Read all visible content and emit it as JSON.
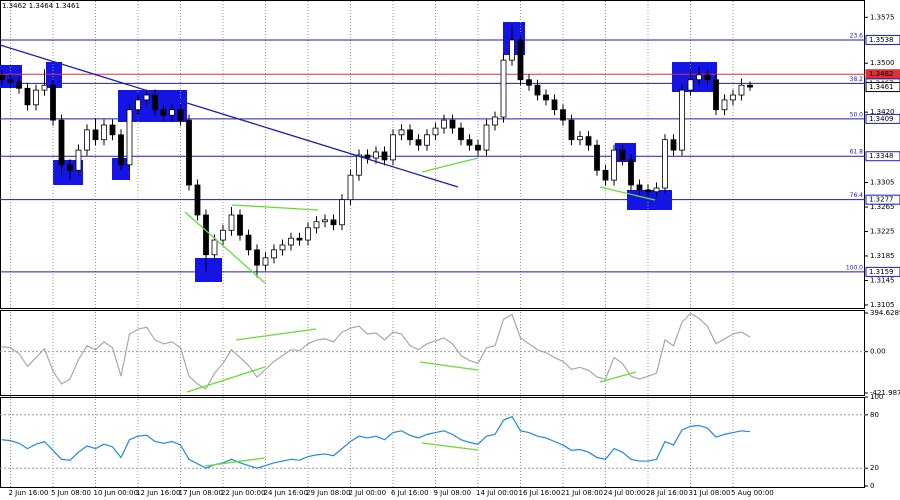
{
  "chart_data": [
    {
      "type": "candlestick",
      "title": "1.3462 1.3464 1.3461",
      "categories": [
        null,
        "2 Jun 16:00",
        null,
        null,
        null,
        null,
        "5 Jun 08:00",
        null,
        null,
        null,
        null,
        "10 Jun 00:00",
        null,
        null,
        null,
        null,
        "12 Jun 16:00",
        null,
        null,
        null,
        null,
        "17 Jun 08:00",
        null,
        null,
        null,
        null,
        "22 Jun 00:00",
        null,
        null,
        null,
        null,
        "24 Jun 16:00",
        null,
        null,
        null,
        null,
        "29 Jun 08:00",
        null,
        null,
        null,
        null,
        "2 Jul 00:00",
        null,
        null,
        null,
        null,
        "6 Jul 16:00",
        null,
        null,
        null,
        null,
        "9 Jul 08:00",
        null,
        null,
        null,
        null,
        "14 Jul 00:00",
        null,
        null,
        null,
        null,
        "16 Jul 16:00",
        null,
        null,
        null,
        null,
        "21 Jul 08:00",
        null,
        null,
        null,
        null,
        "24 Jul 00:00",
        null,
        null,
        null,
        null,
        "28 Jul 16:00",
        null,
        null,
        null,
        null,
        "31 Jul 08:00",
        null,
        null,
        null,
        null,
        "5 Aug 00:00",
        null,
        null
      ],
      "open": [
        1.348,
        1.3473,
        1.3469,
        1.3459,
        1.3432,
        1.3456,
        1.3464,
        1.3407,
        1.3334,
        1.3325,
        1.3358,
        1.3391,
        1.3375,
        1.3399,
        1.3383,
        1.3334,
        1.3424,
        1.344,
        1.3448,
        1.3424,
        1.3415,
        1.3424,
        1.3407,
        1.3301,
        1.3252,
        1.3187,
        1.3211,
        1.3227,
        1.3252,
        1.3219,
        1.3195,
        1.317,
        1.3182,
        1.3195,
        1.3203,
        1.3214,
        1.3211,
        1.3231,
        1.3241,
        1.3244,
        1.3236,
        1.3277,
        1.3317,
        1.335,
        1.3345,
        1.3355,
        1.3342,
        1.3383,
        1.3391,
        1.3375,
        1.3366,
        1.3383,
        1.3394,
        1.3407,
        1.3394,
        1.3375,
        1.3366,
        1.3358,
        1.3399,
        1.3412,
        1.3505,
        1.3538,
        1.3473,
        1.3464,
        1.3448,
        1.344,
        1.3424,
        1.3407,
        1.3375,
        1.338,
        1.3366,
        1.3325,
        1.3309,
        1.3358,
        1.3342,
        1.3301,
        1.3293,
        1.329,
        1.3296,
        1.3375,
        1.3358,
        1.3456,
        1.3473,
        1.3481,
        1.3473,
        1.3424,
        1.344,
        1.3448,
        1.3464
      ],
      "high": [
        1.3489,
        1.3482,
        1.3478,
        1.3468,
        1.3465,
        1.349,
        1.3473,
        1.3416,
        1.3343,
        1.3367,
        1.34,
        1.341,
        1.3408,
        1.3408,
        1.3392,
        1.3433,
        1.3449,
        1.3457,
        1.3457,
        1.3433,
        1.3433,
        1.3433,
        1.3416,
        1.331,
        1.3261,
        1.322,
        1.3236,
        1.3265,
        1.3261,
        1.3228,
        1.3204,
        1.3191,
        1.3204,
        1.3212,
        1.3223,
        1.3223,
        1.324,
        1.325,
        1.3253,
        1.3253,
        1.3286,
        1.3326,
        1.3359,
        1.3359,
        1.3364,
        1.3364,
        1.3392,
        1.34,
        1.34,
        1.3384,
        1.3392,
        1.3403,
        1.3416,
        1.3416,
        1.3403,
        1.3384,
        1.3375,
        1.3408,
        1.3421,
        1.3514,
        1.3562,
        1.3547,
        1.3482,
        1.3473,
        1.3457,
        1.3449,
        1.3433,
        1.3416,
        1.3389,
        1.3389,
        1.3375,
        1.3334,
        1.3367,
        1.3367,
        1.3351,
        1.331,
        1.3302,
        1.3305,
        1.3384,
        1.3384,
        1.3465,
        1.349,
        1.3495,
        1.349,
        1.3482,
        1.3449,
        1.3457,
        1.3475,
        1.347
      ],
      "low": [
        1.3464,
        1.346,
        1.345,
        1.3423,
        1.3423,
        1.3447,
        1.3398,
        1.3318,
        1.331,
        1.3316,
        1.3349,
        1.3366,
        1.3366,
        1.3374,
        1.3325,
        1.3325,
        1.3415,
        1.3431,
        1.3415,
        1.3406,
        1.3406,
        1.3398,
        1.3292,
        1.3243,
        1.316,
        1.3178,
        1.3202,
        1.3218,
        1.321,
        1.3186,
        1.315,
        1.3161,
        1.3173,
        1.3186,
        1.3194,
        1.3202,
        1.3202,
        1.3222,
        1.3232,
        1.3227,
        1.3227,
        1.3268,
        1.3308,
        1.3336,
        1.3336,
        1.3333,
        1.3333,
        1.3374,
        1.3366,
        1.3357,
        1.3357,
        1.3374,
        1.3385,
        1.3385,
        1.3366,
        1.3357,
        1.3349,
        1.3349,
        1.339,
        1.3403,
        1.3496,
        1.3464,
        1.3455,
        1.3439,
        1.3431,
        1.3415,
        1.3398,
        1.3366,
        1.3366,
        1.3357,
        1.3316,
        1.33,
        1.33,
        1.3333,
        1.3292,
        1.3284,
        1.3281,
        1.3281,
        1.3287,
        1.3349,
        1.3349,
        1.3447,
        1.3464,
        1.3464,
        1.3415,
        1.3415,
        1.3431,
        1.3439,
        1.3455
      ],
      "close": [
        1.3473,
        1.3469,
        1.3459,
        1.3432,
        1.3456,
        1.3464,
        1.3407,
        1.3334,
        1.3325,
        1.3358,
        1.3391,
        1.3375,
        1.3399,
        1.3383,
        1.3334,
        1.3424,
        1.344,
        1.3448,
        1.3424,
        1.3415,
        1.3424,
        1.3407,
        1.3301,
        1.3252,
        1.3187,
        1.3211,
        1.3227,
        1.3252,
        1.3219,
        1.3195,
        1.317,
        1.3182,
        1.3195,
        1.3203,
        1.3214,
        1.3211,
        1.3231,
        1.3241,
        1.3244,
        1.3236,
        1.3277,
        1.3317,
        1.335,
        1.3345,
        1.3355,
        1.3342,
        1.3383,
        1.3391,
        1.3375,
        1.3366,
        1.3383,
        1.3394,
        1.3407,
        1.3394,
        1.3375,
        1.3366,
        1.3358,
        1.3399,
        1.3412,
        1.3505,
        1.3538,
        1.3473,
        1.3464,
        1.3448,
        1.344,
        1.3424,
        1.3407,
        1.3375,
        1.338,
        1.3366,
        1.3325,
        1.3309,
        1.3358,
        1.3342,
        1.3301,
        1.3293,
        1.329,
        1.3296,
        1.3375,
        1.3358,
        1.3456,
        1.3473,
        1.3481,
        1.3473,
        1.3424,
        1.344,
        1.3448,
        1.3464,
        1.3461
      ],
      "color": "#000000",
      "level_color": "#1a1ac8",
      "ylim": [
        1.31,
        1.36
      ],
      "yticks": [
        1.3575,
        {
          "value": 1.35,
          "label": "1.3500"
        },
        {
          "value": 1.342,
          "label": "1.3420"
        },
        1.3305,
        1.3265,
        1.3225,
        1.3185,
        1.3145,
        1.3105
      ],
      "levels": [
        {
          "value": 1.3538,
          "fib": "23.6"
        },
        {
          "value": 1.3482,
          "color": "#e03030"
        },
        {
          "value": 1.3467,
          "fib": "38.2"
        },
        {
          "value": 1.3409,
          "fib": "50.0"
        },
        {
          "value": 1.3348,
          "fib": "61.8"
        },
        {
          "value": 1.3277,
          "fib": "76.4"
        },
        {
          "value": 1.3159,
          "fib": "100.0"
        }
      ],
      "grid": true
    },
    {
      "type": "line",
      "color": "#a8a8a8",
      "values": [
        50,
        40,
        -20,
        -150,
        -60,
        30,
        -200,
        -330,
        -280,
        -80,
        60,
        20,
        100,
        40,
        -250,
        180,
        230,
        250,
        120,
        80,
        100,
        40,
        -250,
        -330,
        -380,
        -220,
        -120,
        20,
        -60,
        -140,
        -260,
        -180,
        -100,
        -40,
        20,
        10,
        80,
        120,
        130,
        100,
        200,
        240,
        260,
        180,
        190,
        120,
        200,
        180,
        60,
        20,
        80,
        110,
        140,
        80,
        -40,
        -90,
        -120,
        40,
        60,
        330,
        380,
        140,
        80,
        20,
        -10,
        -60,
        -100,
        -180,
        -160,
        -190,
        -260,
        -280,
        -60,
        -120,
        -250,
        -280,
        -250,
        -220,
        120,
        60,
        300,
        390,
        340,
        260,
        80,
        130,
        180,
        200,
        150
      ],
      "ylim": [
        -421.9874,
        394.6289
      ],
      "yticks": [
        394.6289,
        {
          "value": 0,
          "label": "0.00"
        },
        -421.9874
      ]
    },
    {
      "type": "line",
      "color": "#1e88e5",
      "values": [
        52,
        51,
        48,
        42,
        47,
        50,
        40,
        30,
        29,
        38,
        45,
        42,
        47,
        44,
        32,
        52,
        56,
        57,
        50,
        48,
        50,
        46,
        30,
        25,
        20,
        24,
        26,
        30,
        26,
        23,
        20,
        23,
        26,
        28,
        30,
        29,
        33,
        35,
        36,
        34,
        42,
        50,
        56,
        54,
        56,
        52,
        60,
        62,
        57,
        54,
        58,
        60,
        62,
        58,
        52,
        49,
        47,
        56,
        58,
        74,
        78,
        62,
        60,
        56,
        54,
        50,
        46,
        40,
        41,
        38,
        32,
        30,
        42,
        38,
        30,
        28,
        28,
        30,
        50,
        46,
        63,
        67,
        68,
        65,
        55,
        58,
        60,
        62,
        61
      ],
      "ylim": [
        0,
        100
      ],
      "yticks": [
        100,
        80,
        20,
        0
      ]
    }
  ]
}
